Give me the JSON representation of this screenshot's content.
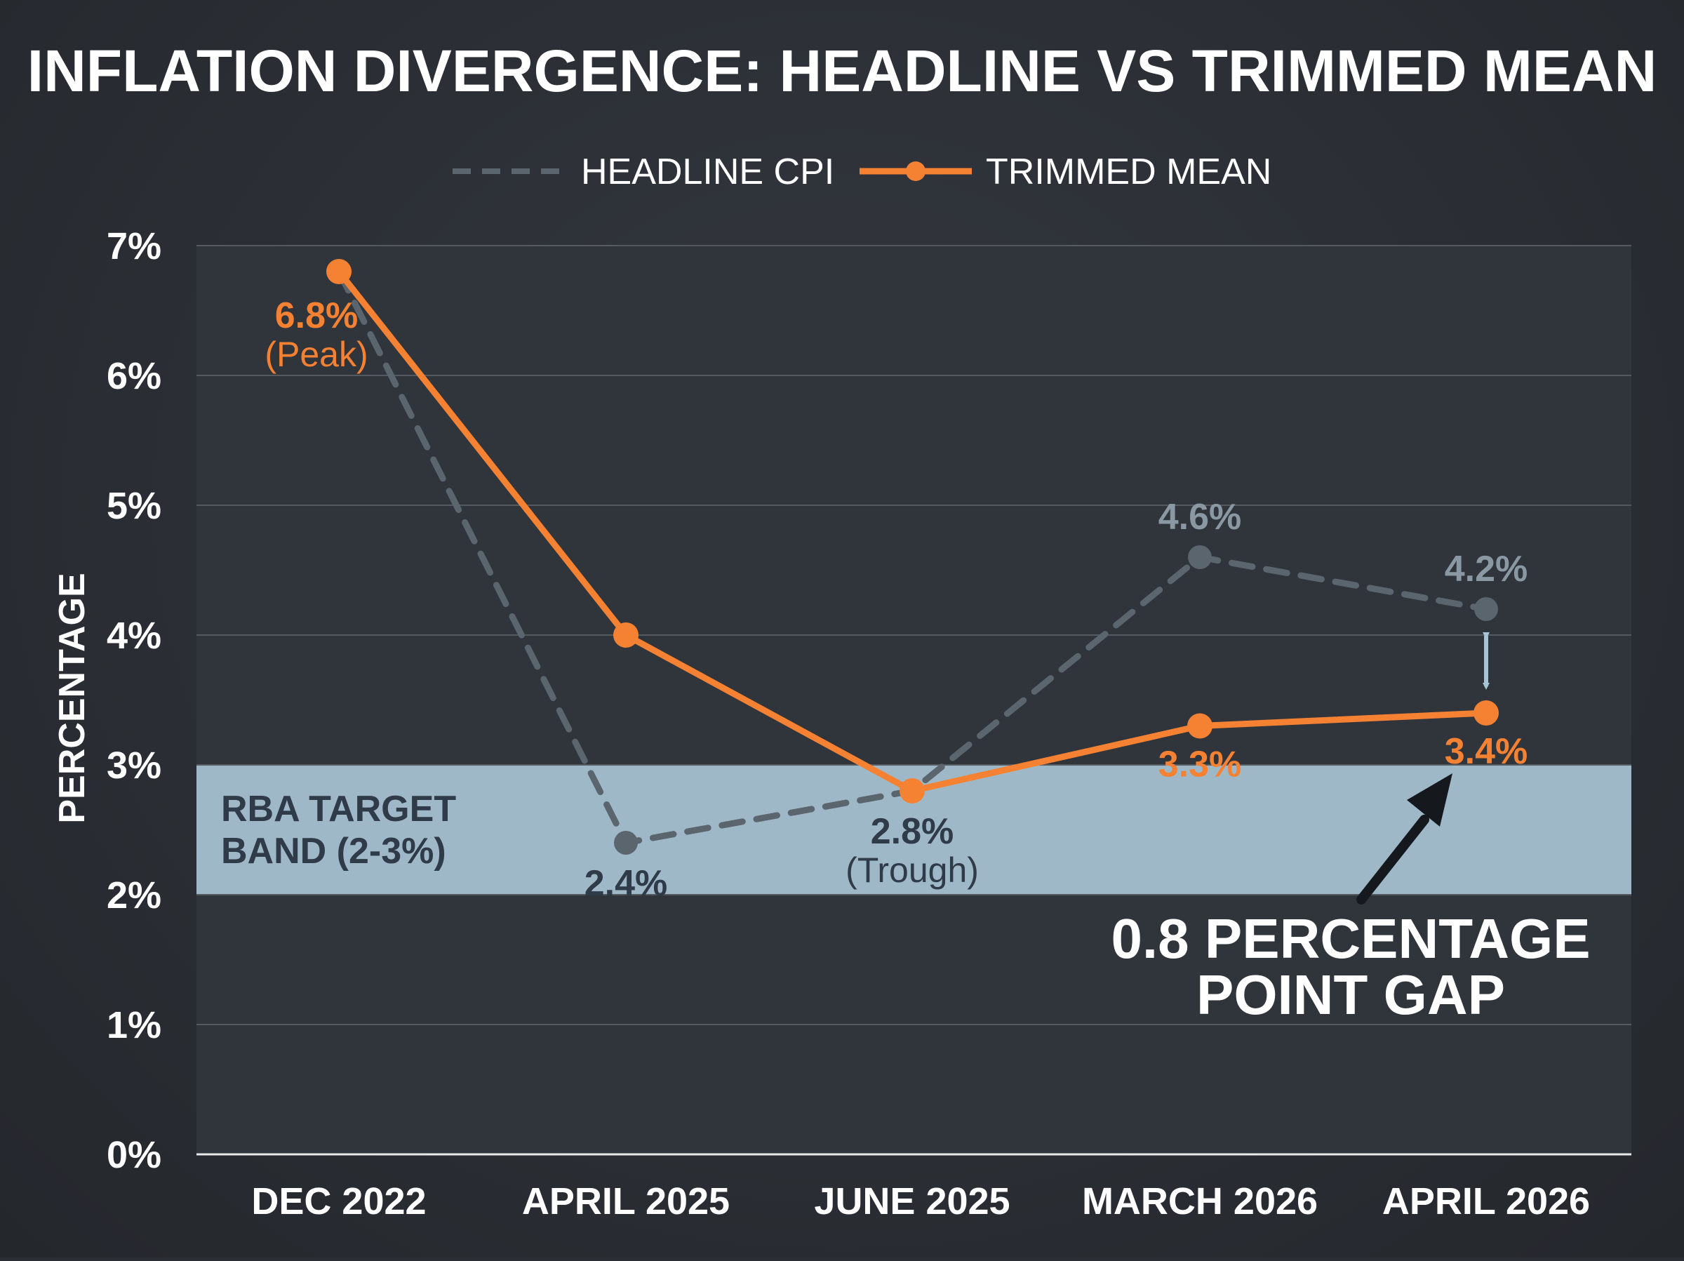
{
  "chart_data": {
    "type": "line",
    "title": "INFLATION DIVERGENCE: HEADLINE VS TRIMMED MEAN",
    "ylabel": "PERCENTAGE",
    "xlabel": "",
    "categories": [
      "DEC 2022",
      "APRIL 2025",
      "JUNE 2025",
      "MARCH 2026",
      "APRIL 2026"
    ],
    "ylim": [
      0,
      7
    ],
    "y_ticks": [
      0,
      1,
      2,
      3,
      4,
      5,
      6,
      7
    ],
    "y_tick_labels": [
      "0%",
      "1%",
      "2%",
      "3%",
      "4%",
      "5%",
      "6%",
      "7%"
    ],
    "grid": true,
    "legend_position": "top-center",
    "series": [
      {
        "name": "HEADLINE CPI",
        "style": "dashed",
        "color": "#5a656e",
        "values": [
          6.8,
          2.4,
          2.8,
          4.6,
          4.2
        ]
      },
      {
        "name": "TRIMMED MEAN",
        "style": "solid",
        "color": "#f58233",
        "values": [
          6.8,
          4.0,
          2.8,
          3.3,
          3.4
        ]
      }
    ],
    "target_band": {
      "label_line1": "RBA TARGET",
      "label_line2": "BAND (2-3%)",
      "range": [
        2,
        3
      ],
      "color": "#9fb8c8"
    },
    "data_labels": {
      "dec_2022": {
        "value": "6.8%",
        "note": "(Peak)"
      },
      "april_2025": {
        "value": "2.4%"
      },
      "june_2025": {
        "value": "2.8%",
        "note": "(Trough)"
      },
      "march_2026_headline": {
        "value": "4.6%"
      },
      "march_2026_trimmed": {
        "value": "3.3%"
      },
      "april_2026_headline": {
        "value": "4.2%"
      },
      "april_2026_trimmed": {
        "value": "3.4%"
      }
    },
    "gap_annotation": {
      "line1": "0.8 PERCENTAGE",
      "line2": "POINT GAP"
    }
  }
}
